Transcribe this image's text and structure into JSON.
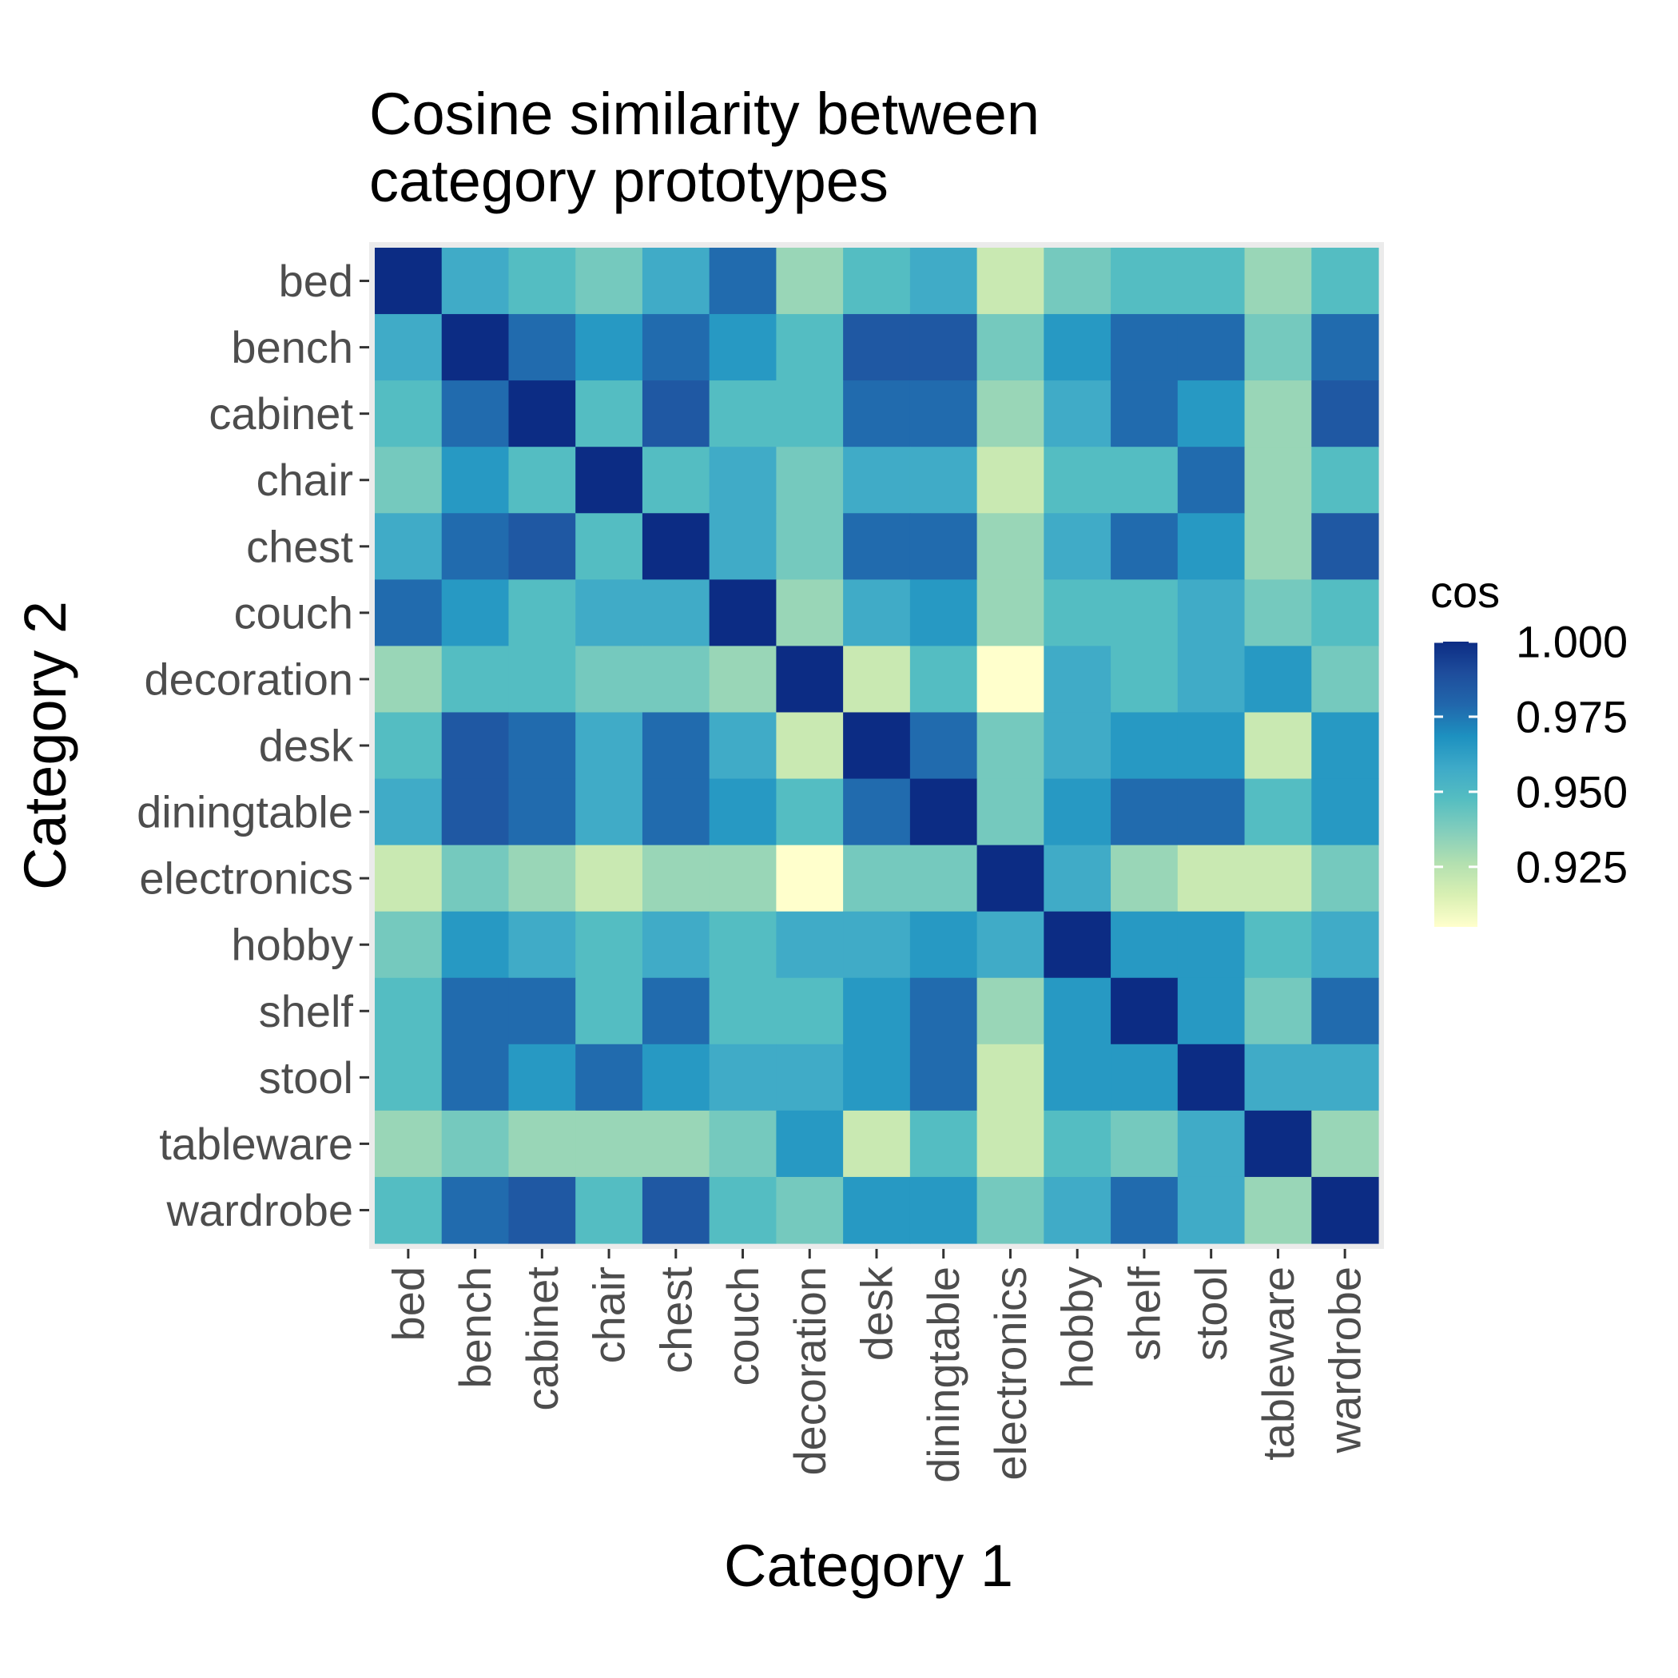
{
  "chart_data": {
    "type": "heatmap",
    "title_lines": [
      "Cosine similarity between",
      "category prototypes"
    ],
    "xlabel": "Category 1",
    "ylabel": "Category 2",
    "categories": [
      "bed",
      "bench",
      "cabinet",
      "chair",
      "chest",
      "couch",
      "decoration",
      "desk",
      "diningtable",
      "electronics",
      "hobby",
      "shelf",
      "stool",
      "tableware",
      "wardrobe"
    ],
    "values": [
      [
        1.0,
        0.957,
        0.948,
        0.94,
        0.957,
        0.978,
        0.932,
        0.948,
        0.957,
        0.92,
        0.94,
        0.948,
        0.948,
        0.932,
        0.948
      ],
      [
        0.957,
        1.0,
        0.978,
        0.965,
        0.978,
        0.965,
        0.948,
        0.985,
        0.985,
        0.94,
        0.965,
        0.978,
        0.978,
        0.94,
        0.978
      ],
      [
        0.948,
        0.978,
        1.0,
        0.948,
        0.985,
        0.948,
        0.948,
        0.978,
        0.978,
        0.932,
        0.957,
        0.978,
        0.965,
        0.932,
        0.985
      ],
      [
        0.94,
        0.965,
        0.948,
        1.0,
        0.948,
        0.957,
        0.94,
        0.957,
        0.957,
        0.92,
        0.948,
        0.948,
        0.978,
        0.932,
        0.948
      ],
      [
        0.957,
        0.978,
        0.985,
        0.948,
        1.0,
        0.957,
        0.94,
        0.978,
        0.978,
        0.932,
        0.957,
        0.978,
        0.965,
        0.932,
        0.985
      ],
      [
        0.978,
        0.965,
        0.948,
        0.957,
        0.957,
        1.0,
        0.932,
        0.957,
        0.965,
        0.932,
        0.948,
        0.948,
        0.957,
        0.94,
        0.948
      ],
      [
        0.932,
        0.948,
        0.948,
        0.94,
        0.94,
        0.932,
        1.0,
        0.92,
        0.948,
        0.905,
        0.957,
        0.948,
        0.957,
        0.965,
        0.94
      ],
      [
        0.948,
        0.985,
        0.978,
        0.957,
        0.978,
        0.957,
        0.92,
        1.0,
        0.978,
        0.94,
        0.957,
        0.965,
        0.965,
        0.92,
        0.965
      ],
      [
        0.957,
        0.985,
        0.978,
        0.957,
        0.978,
        0.965,
        0.948,
        0.978,
        1.0,
        0.94,
        0.965,
        0.978,
        0.978,
        0.948,
        0.965
      ],
      [
        0.92,
        0.94,
        0.932,
        0.92,
        0.932,
        0.932,
        0.905,
        0.94,
        0.94,
        1.0,
        0.957,
        0.932,
        0.92,
        0.92,
        0.94
      ],
      [
        0.94,
        0.965,
        0.957,
        0.948,
        0.957,
        0.948,
        0.957,
        0.957,
        0.965,
        0.957,
        1.0,
        0.965,
        0.965,
        0.948,
        0.957
      ],
      [
        0.948,
        0.978,
        0.978,
        0.948,
        0.978,
        0.948,
        0.948,
        0.965,
        0.978,
        0.932,
        0.965,
        1.0,
        0.965,
        0.94,
        0.978
      ],
      [
        0.948,
        0.978,
        0.965,
        0.978,
        0.965,
        0.957,
        0.957,
        0.965,
        0.978,
        0.92,
        0.965,
        0.965,
        1.0,
        0.957,
        0.957
      ],
      [
        0.932,
        0.94,
        0.932,
        0.932,
        0.932,
        0.94,
        0.965,
        0.92,
        0.948,
        0.92,
        0.948,
        0.94,
        0.957,
        1.0,
        0.932
      ],
      [
        0.948,
        0.978,
        0.985,
        0.948,
        0.985,
        0.948,
        0.94,
        0.965,
        0.965,
        0.94,
        0.957,
        0.978,
        0.957,
        0.932,
        1.0
      ]
    ],
    "legend": {
      "title": "cos",
      "ticks": [
        "1.000",
        "0.975",
        "0.950",
        "0.925"
      ],
      "tick_values": [
        1.0,
        0.975,
        0.95,
        0.925
      ],
      "range": [
        0.905,
        1.0
      ]
    },
    "colorscale": [
      "#ffffcc",
      "#d9f0b3",
      "#b3e0b0",
      "#84cebc",
      "#56bec1",
      "#3eaac8",
      "#1d91c0",
      "#2167ac",
      "#1e4d9c",
      "#0c2c84"
    ],
    "panel_background": "#ebebeb",
    "grid": true,
    "legend_position": "right"
  }
}
